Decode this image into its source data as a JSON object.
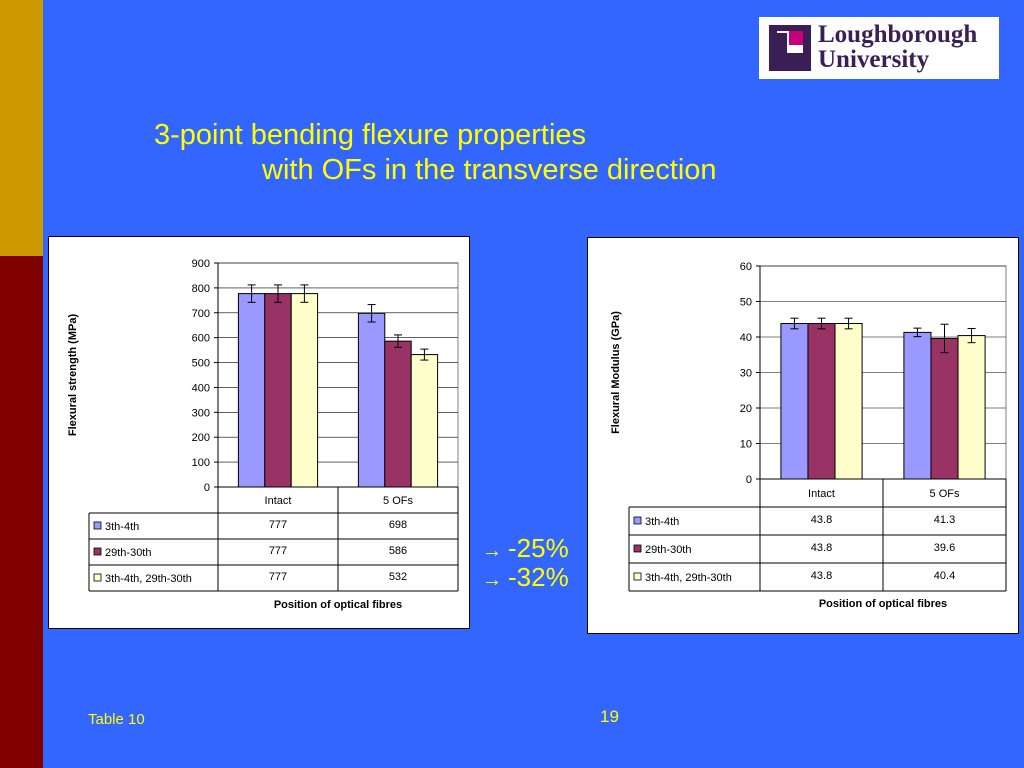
{
  "slide": {
    "title_line1": "3-point bending flexure properties",
    "title_line2": "with OFs in the transverse direction",
    "logo_line1": "Loughborough",
    "logo_line2": "University",
    "change_1": "-25%",
    "change_2": "-32%",
    "arrow_glyph": "→",
    "footer_label": "Table 10",
    "page_number": "19"
  },
  "colors": {
    "background": "#3366ff",
    "series1": "#9999ff",
    "series2": "#993366",
    "series3": "#ffffcc",
    "accent_text": "#ffff00"
  },
  "chart_data": [
    {
      "type": "bar",
      "categories": [
        "Intact",
        "5 OFs"
      ],
      "series": [
        {
          "name": "3th-4th",
          "values": [
            777,
            698
          ],
          "errors": [
            35,
            35
          ]
        },
        {
          "name": "29th-30th",
          "values": [
            777,
            586
          ],
          "errors": [
            35,
            25
          ]
        },
        {
          "name": "3th-4th, 29th-30th",
          "values": [
            777,
            532
          ],
          "errors": [
            35,
            22
          ]
        }
      ],
      "table_values": [
        [
          "777",
          "698"
        ],
        [
          "777",
          "586"
        ],
        [
          "777",
          "532"
        ]
      ],
      "ylabel": "Flexural strength (MPa)",
      "xlabel": "Position of optical fibres",
      "ylim": [
        0,
        900
      ],
      "yticks": [
        0,
        100,
        200,
        300,
        400,
        500,
        600,
        700,
        800,
        900
      ],
      "grid": true,
      "legend": "data-table"
    },
    {
      "type": "bar",
      "categories": [
        "Intact",
        "5 OFs"
      ],
      "series": [
        {
          "name": "3th-4th",
          "values": [
            43.8,
            41.3
          ],
          "errors": [
            1.5,
            1.2
          ]
        },
        {
          "name": "29th-30th",
          "values": [
            43.8,
            39.6
          ],
          "errors": [
            1.5,
            4.0
          ]
        },
        {
          "name": "3th-4th, 29th-30th",
          "values": [
            43.8,
            40.4
          ],
          "errors": [
            1.5,
            2.0
          ]
        }
      ],
      "table_values": [
        [
          "43.8",
          "41.3"
        ],
        [
          "43.8",
          "39.6"
        ],
        [
          "43.8",
          "40.4"
        ]
      ],
      "ylabel": "Flexural Modulus (GPa)",
      "xlabel": "Position of optical fibres",
      "ylim": [
        0,
        60
      ],
      "yticks": [
        0,
        10,
        20,
        30,
        40,
        50,
        60
      ],
      "grid": true,
      "legend": "data-table"
    }
  ]
}
